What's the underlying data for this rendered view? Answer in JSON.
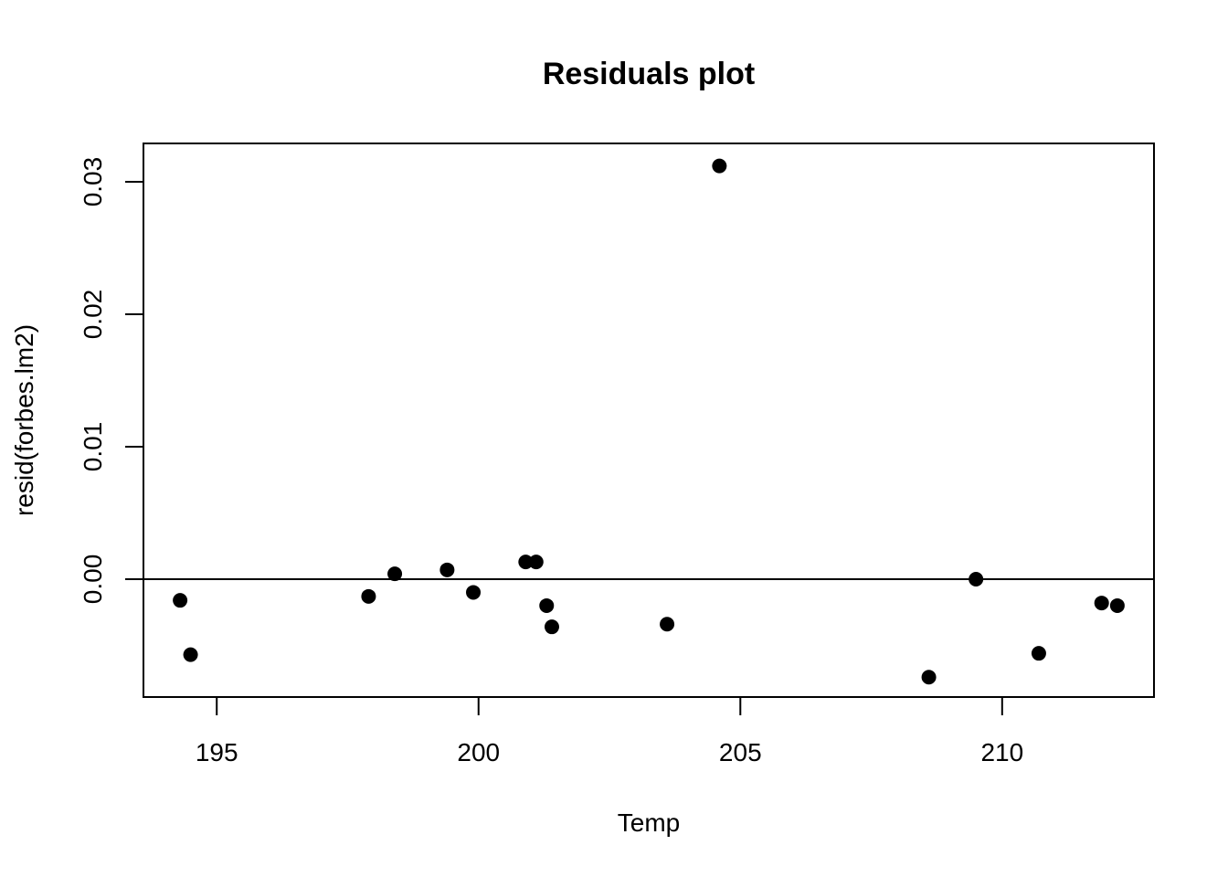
{
  "chart_data": {
    "type": "scatter",
    "title": "Residuals plot",
    "xlabel": "Temp",
    "ylabel": "resid(forbes.lm2)",
    "xlim": [
      193.6,
      212.9
    ],
    "ylim": [
      -0.0089,
      0.0329
    ],
    "x_ticks": [
      195,
      200,
      205,
      210
    ],
    "x_tick_labels": [
      "195",
      "200",
      "205",
      "210"
    ],
    "y_ticks": [
      0,
      0.01,
      0.02,
      0.03
    ],
    "y_tick_labels": [
      "0.00",
      "0.01",
      "0.02",
      "0.03"
    ],
    "reference_line_y": 0,
    "grid": false,
    "x": [
      194.3,
      194.5,
      197.9,
      198.4,
      199.4,
      199.9,
      200.9,
      201.1,
      201.3,
      201.4,
      203.6,
      204.6,
      208.6,
      209.5,
      210.7,
      211.9,
      212.2
    ],
    "y": [
      -0.0016,
      -0.0057,
      -0.0013,
      0.0004,
      0.0007,
      -0.001,
      0.0013,
      0.0013,
      -0.002,
      -0.0036,
      -0.0034,
      0.0312,
      -0.0074,
      0.0,
      -0.0056,
      -0.0018,
      -0.002
    ]
  }
}
